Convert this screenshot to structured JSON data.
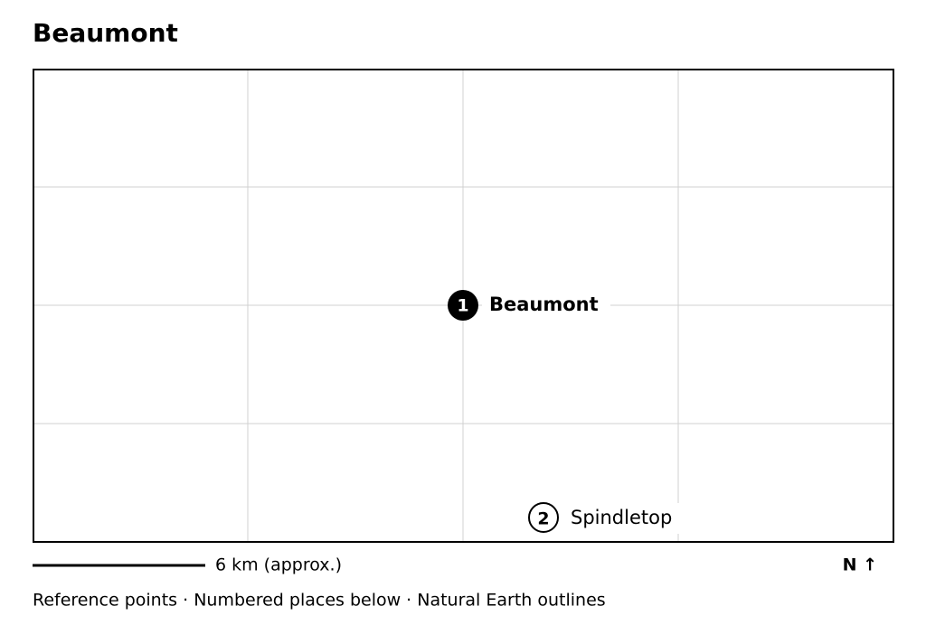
{
  "header": {
    "title": "Beaumont"
  },
  "places": [
    {
      "number": "1",
      "label": "Beaumont"
    },
    {
      "number": "2",
      "label": "Spindletop"
    }
  ],
  "scale": {
    "label": "6 km (approx.)"
  },
  "north": "N ↑",
  "footer": "Reference points · Numbered places below · Natural Earth outlines"
}
